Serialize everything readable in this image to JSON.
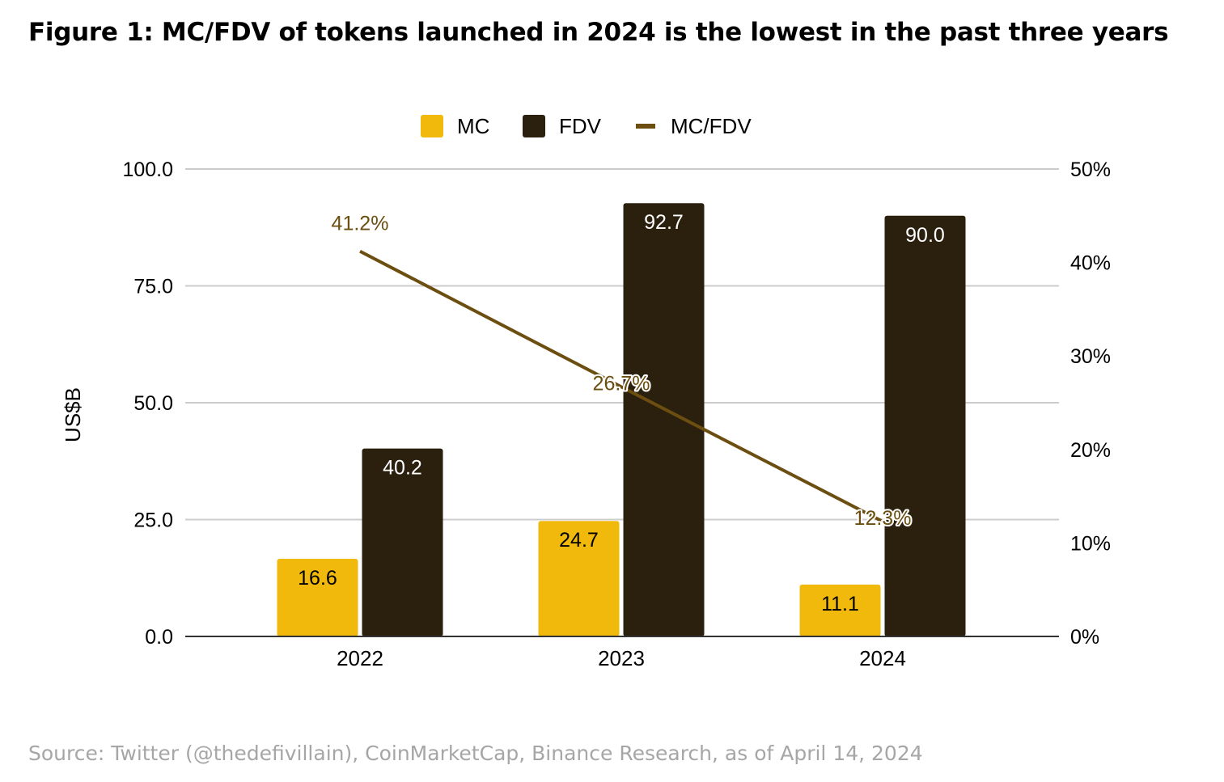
{
  "title": "Figure 1: MC/FDV of tokens launched in 2024 is the lowest in the past three years",
  "source": "Source: Twitter (@thedefivillain), CoinMarketCap, Binance Research, as of April 14, 2024",
  "chart_data": {
    "type": "bar",
    "categories": [
      "2022",
      "2023",
      "2024"
    ],
    "series": [
      {
        "name": "MC",
        "type": "bar",
        "axis": "left",
        "values": [
          16.6,
          24.7,
          11.1
        ],
        "labels": [
          "16.6",
          "24.7",
          "11.1"
        ],
        "color": "#f0b90b"
      },
      {
        "name": "FDV",
        "type": "bar",
        "axis": "left",
        "values": [
          40.2,
          92.7,
          90.0
        ],
        "labels": [
          "40.2",
          "92.7",
          "90.0"
        ],
        "color": "#2b200e"
      },
      {
        "name": "MC/FDV",
        "type": "line",
        "axis": "right",
        "values": [
          41.2,
          26.7,
          12.3
        ],
        "labels": [
          "41.2%",
          "26.7%",
          "12.3%"
        ],
        "color": "#6b4e10"
      }
    ],
    "ylabel": "US$B",
    "ylim": [
      0,
      100
    ],
    "yticks": [
      "0.0",
      "25.0",
      "50.0",
      "75.0",
      "100.0"
    ],
    "y2lim": [
      0,
      50
    ],
    "y2ticks": [
      "0%",
      "10%",
      "20%",
      "30%",
      "40%",
      "50%"
    ],
    "grid": true,
    "legend": "top-center"
  }
}
